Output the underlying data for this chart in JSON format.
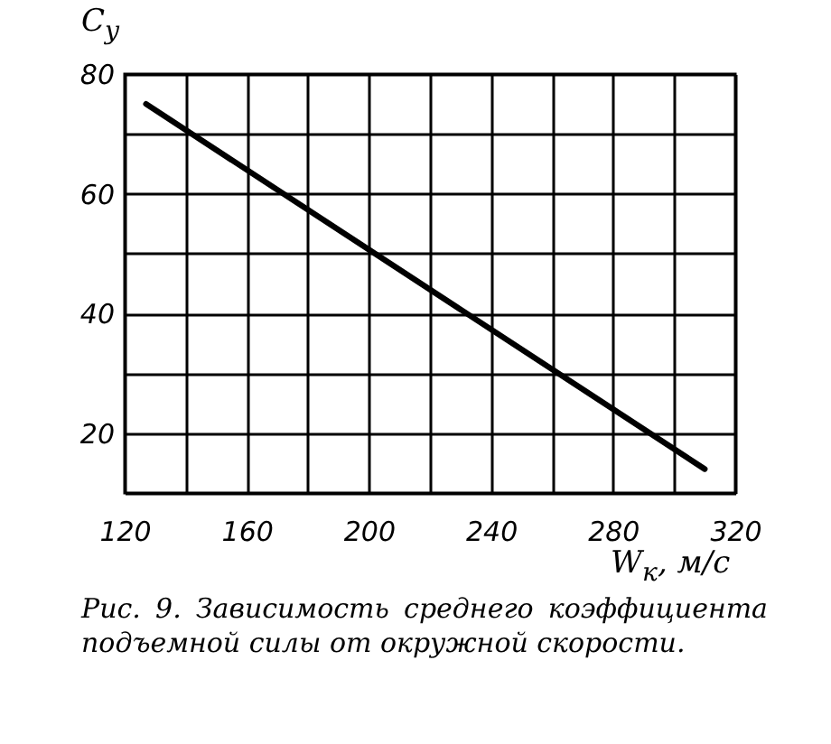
{
  "chart_data": {
    "type": "line",
    "xlabel": "W$_{к}$, м/с",
    "ylabel": "C$_{y}$",
    "x": [
      127,
      310
    ],
    "series": [
      {
        "color": "#000000",
        "values": [
          75,
          14
        ]
      }
    ],
    "xlim": [
      120,
      320
    ],
    "ylim": [
      10,
      80
    ],
    "xticks": [
      120,
      {
        "value": 140,
        "label": null
      },
      160,
      {
        "value": 180,
        "label": null
      },
      200,
      {
        "value": 220,
        "label": null
      },
      240,
      {
        "value": 260,
        "label": null
      },
      280,
      {
        "value": 300,
        "label": null
      },
      320
    ],
    "yticks": [
      {
        "value": 10,
        "label": null
      },
      20,
      {
        "value": 30,
        "label": null
      },
      40,
      {
        "value": 50,
        "label": null
      },
      60,
      {
        "value": 70,
        "label": null
      },
      80
    ],
    "grid": true,
    "marker": "none",
    "line_style": "solid",
    "annotations": [
      "Рис. 9. Зависимость среднего коэффициента подъемной силы от окружной скорости."
    ]
  }
}
